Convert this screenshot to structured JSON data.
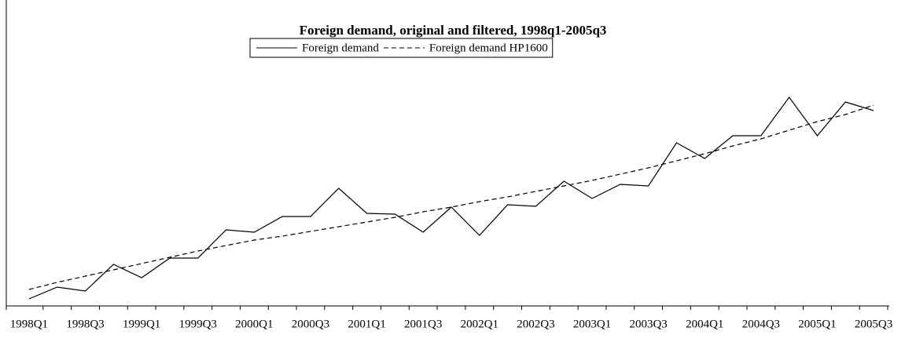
{
  "chart_data": {
    "type": "line",
    "title": "Foreign demand, original and filtered, 1998q1-2005q3",
    "categories": [
      "1998Q1",
      null,
      "1998Q3",
      null,
      "1999Q1",
      null,
      "1999Q3",
      null,
      "2000Q1",
      null,
      "2000Q3",
      null,
      "2001Q1",
      null,
      "2001Q3",
      null,
      "2002Q1",
      null,
      "2002Q3",
      null,
      "2003Q1",
      null,
      "2003Q3",
      null,
      "2004Q1",
      null,
      "2004Q3",
      null,
      "2005Q1",
      null,
      "2005Q3"
    ],
    "series": [
      {
        "name": "Foreign demand",
        "color": "#000000",
        "dash": "none",
        "values": [
          9,
          24,
          19,
          53,
          36,
          61,
          61,
          97,
          94,
          114,
          114,
          150,
          118,
          117,
          94,
          126,
          90,
          129,
          127,
          159,
          137,
          155,
          153,
          208,
          188,
          217,
          217,
          266,
          217,
          260,
          249
        ]
      },
      {
        "name": "Foreign demand HP1600",
        "color": "#000000",
        "dash": "6 4",
        "values": [
          21,
          30,
          38,
          46,
          54,
          62,
          70,
          77,
          84,
          89,
          95,
          101,
          107,
          113,
          120,
          126,
          133,
          139,
          146,
          153,
          160,
          168,
          176,
          185,
          194,
          204,
          213,
          224,
          235,
          244,
          256
        ]
      }
    ],
    "ylim": [
      0,
      300
    ],
    "legend": "top"
  }
}
